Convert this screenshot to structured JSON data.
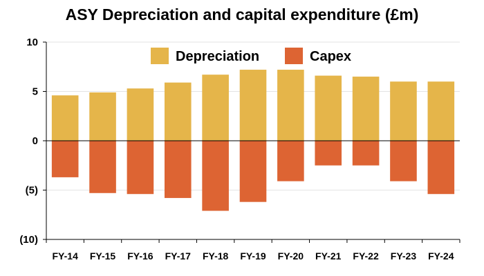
{
  "chart_data": {
    "type": "bar",
    "stacked": true,
    "title": "ASY Depreciation and capital expenditure (£m)",
    "xlabel": "",
    "ylabel": "",
    "categories": [
      "FY-14",
      "FY-15",
      "FY-16",
      "FY-17",
      "FY-18",
      "FY-19",
      "FY-20",
      "FY-21",
      "FY-22",
      "FY-23",
      "FY-24"
    ],
    "series": [
      {
        "name": "Depreciation",
        "color": "#E5B54A",
        "values": [
          4.6,
          4.9,
          5.3,
          5.9,
          6.7,
          7.2,
          7.2,
          6.6,
          6.5,
          6.0,
          6.0
        ]
      },
      {
        "name": "Capex",
        "color": "#DD6433",
        "values": [
          -3.7,
          -5.3,
          -5.4,
          -5.8,
          -7.1,
          -6.2,
          -4.1,
          -2.5,
          -2.5,
          -4.1,
          -5.4
        ]
      }
    ],
    "ylim": [
      -10,
      10
    ],
    "yticks": [
      10,
      5,
      0,
      -5,
      -10
    ],
    "ytick_labels": [
      "10",
      "5",
      "0",
      "(5)",
      "(10)"
    ],
    "grid": true,
    "legend_position": "top-center"
  }
}
